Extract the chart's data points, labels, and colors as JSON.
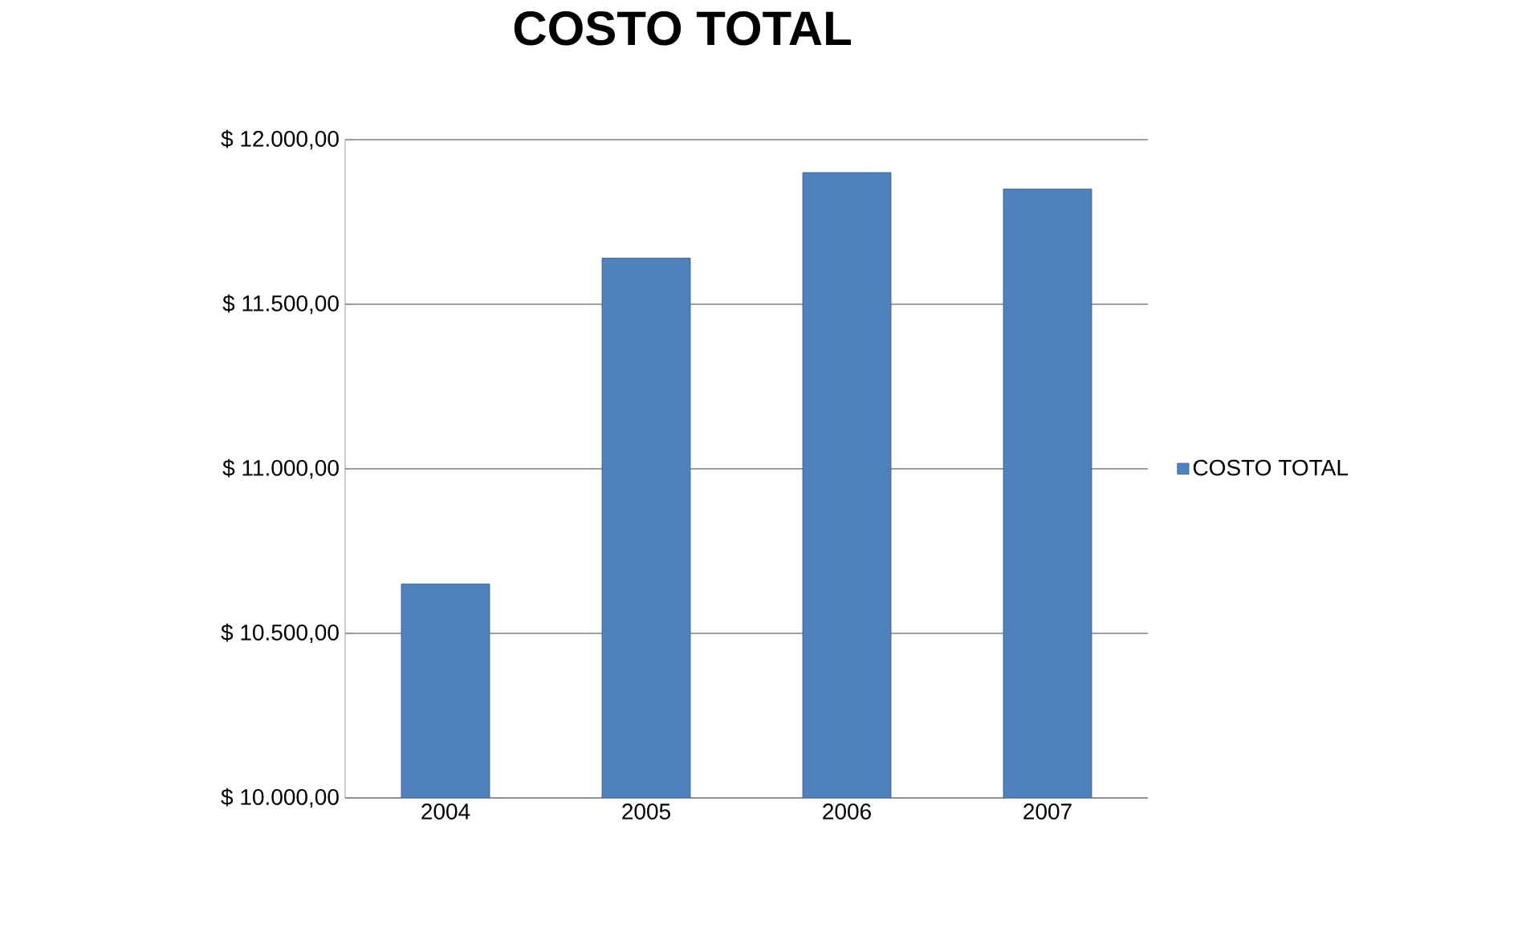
{
  "chart_data": {
    "type": "bar",
    "title": "COSTO TOTAL",
    "categories": [
      "2004",
      "2005",
      "2006",
      "2007"
    ],
    "series": [
      {
        "name": "COSTO TOTAL",
        "color": "#4f81bd",
        "values": [
          10650,
          11640,
          11900,
          11850
        ]
      }
    ],
    "ylim": [
      10000,
      12000
    ],
    "yticks": [
      {
        "value": 10000,
        "label": "$ 10.000,00"
      },
      {
        "value": 10500,
        "label": "$ 10.500,00"
      },
      {
        "value": 11000,
        "label": "$ 11.000,00"
      },
      {
        "value": 11500,
        "label": "$ 11.500,00"
      },
      {
        "value": 12000,
        "label": "$ 12.000,00"
      }
    ],
    "grid": "y",
    "legend": "right"
  }
}
